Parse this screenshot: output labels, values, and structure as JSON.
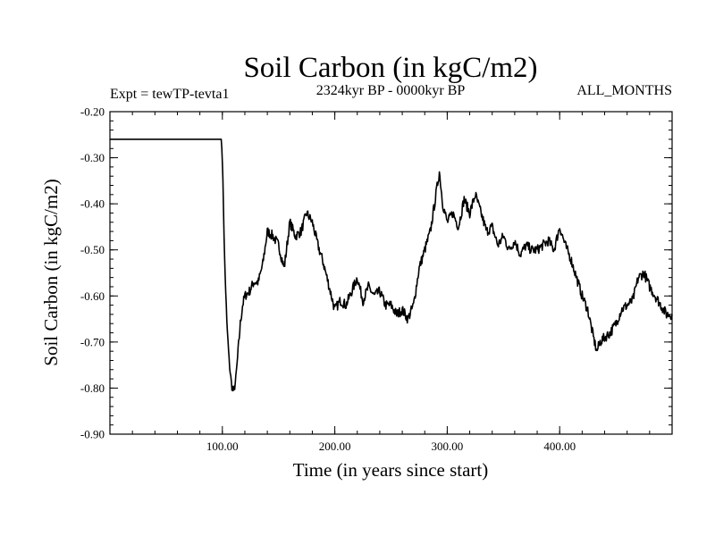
{
  "chart_data": {
    "type": "line",
    "title": "Soil Carbon (in kgC/m2)",
    "experiment": "Expt = tewTP-tevta1",
    "period": "2324kyr BP - 0000kyr BP",
    "months": "ALL_MONTHS",
    "xlabel": "Time (in years since start)",
    "ylabel": "Soil Carbon (in kgC/m2)",
    "xlim": [
      0,
      500
    ],
    "ylim": [
      -0.9,
      -0.2
    ],
    "x_ticks": [
      {
        "value": 100,
        "label": "100.00"
      },
      {
        "value": 200,
        "label": "200.00"
      },
      {
        "value": 300,
        "label": "300.00"
      },
      {
        "value": 400,
        "label": "400.00"
      }
    ],
    "y_ticks": [
      {
        "value": -0.2,
        "label": "-0.20"
      },
      {
        "value": -0.3,
        "label": "-0.30"
      },
      {
        "value": -0.4,
        "label": "-0.40"
      },
      {
        "value": -0.5,
        "label": "-0.50"
      },
      {
        "value": -0.6,
        "label": "-0.60"
      },
      {
        "value": -0.7,
        "label": "-0.70"
      },
      {
        "value": -0.8,
        "label": "-0.80"
      },
      {
        "value": -0.9,
        "label": "-0.90"
      }
    ],
    "series": [
      {
        "name": "Soil Carbon",
        "color": "#000000",
        "x": [
          0,
          99,
          100,
          102,
          104,
          106,
          108,
          110,
          112,
          114,
          116,
          118,
          120,
          124,
          128,
          132,
          136,
          140,
          145,
          150,
          155,
          160,
          165,
          170,
          175,
          180,
          185,
          190,
          195,
          200,
          205,
          210,
          215,
          220,
          225,
          230,
          235,
          240,
          245,
          250,
          255,
          260,
          265,
          270,
          275,
          280,
          285,
          290,
          293,
          296,
          300,
          305,
          310,
          315,
          320,
          325,
          330,
          335,
          340,
          345,
          350,
          355,
          360,
          365,
          370,
          375,
          380,
          385,
          390,
          395,
          400,
          405,
          410,
          415,
          420,
          425,
          430,
          433,
          436,
          440,
          445,
          450,
          455,
          460,
          465,
          470,
          475,
          480,
          485,
          490,
          495,
          500
        ],
        "y": [
          -0.26,
          -0.26,
          -0.3,
          -0.52,
          -0.66,
          -0.74,
          -0.79,
          -0.81,
          -0.78,
          -0.72,
          -0.66,
          -0.62,
          -0.6,
          -0.59,
          -0.57,
          -0.57,
          -0.53,
          -0.46,
          -0.47,
          -0.49,
          -0.54,
          -0.44,
          -0.47,
          -0.46,
          -0.42,
          -0.44,
          -0.49,
          -0.53,
          -0.58,
          -0.63,
          -0.61,
          -0.62,
          -0.59,
          -0.56,
          -0.61,
          -0.58,
          -0.6,
          -0.59,
          -0.62,
          -0.62,
          -0.64,
          -0.63,
          -0.65,
          -0.62,
          -0.54,
          -0.5,
          -0.46,
          -0.38,
          -0.33,
          -0.4,
          -0.44,
          -0.42,
          -0.45,
          -0.39,
          -0.42,
          -0.38,
          -0.42,
          -0.46,
          -0.45,
          -0.49,
          -0.47,
          -0.5,
          -0.48,
          -0.51,
          -0.49,
          -0.5,
          -0.5,
          -0.49,
          -0.48,
          -0.5,
          -0.45,
          -0.49,
          -0.52,
          -0.56,
          -0.6,
          -0.63,
          -0.69,
          -0.72,
          -0.7,
          -0.69,
          -0.68,
          -0.66,
          -0.63,
          -0.62,
          -0.61,
          -0.56,
          -0.55,
          -0.58,
          -0.6,
          -0.62,
          -0.64,
          -0.64
        ]
      }
    ]
  }
}
